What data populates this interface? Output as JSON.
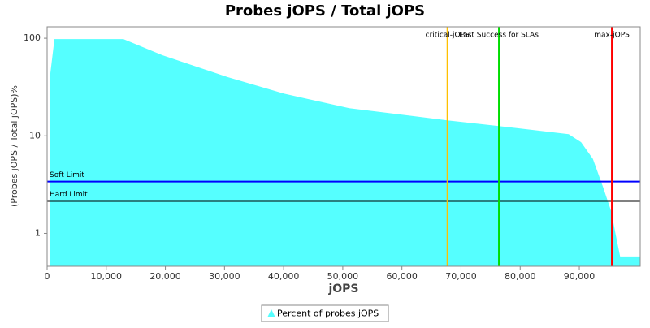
{
  "chart_data": {
    "type": "area",
    "title": "Probes jOPS / Total jOPS",
    "x_label": "jOPS",
    "y_label": "(Probes jOPS / Total jOPS)%",
    "log_y": true,
    "xlim": [
      0,
      100300
    ],
    "ylim": [
      0.46,
      131
    ],
    "xticks": [
      {
        "value": 0,
        "label": "0"
      },
      {
        "value": 10000,
        "label": "10,000"
      },
      {
        "value": 20000,
        "label": "20,000"
      },
      {
        "value": 30000,
        "label": "30,000"
      },
      {
        "value": 40000,
        "label": "40,000"
      },
      {
        "value": 50000,
        "label": "50,000"
      },
      {
        "value": 60000,
        "label": "60,000"
      },
      {
        "value": 70000,
        "label": "70,000"
      },
      {
        "value": 80000,
        "label": "80,000"
      },
      {
        "value": 90000,
        "label": "90,000"
      }
    ],
    "yticks": [
      1,
      10,
      100
    ],
    "x": [
      550,
      1240,
      12900,
      19500,
      30500,
      40100,
      51100,
      67700,
      76400,
      88200,
      90300,
      92300,
      94000,
      95400,
      96200,
      96900,
      100300
    ],
    "series": [
      {
        "name": "Percent of probes jOPS",
        "color": "#55ffff",
        "values": [
          44,
          98,
          98,
          67,
          40,
          27,
          19.2,
          14.4,
          12.6,
          10.4,
          8.6,
          5.8,
          3.0,
          1.68,
          0.94,
          0.58,
          0.58
        ]
      }
    ],
    "hlines": [
      {
        "label": "Soft Limit",
        "value": 3.4,
        "color": "#0000ff"
      },
      {
        "label": "Hard Limit",
        "value": 2.15,
        "color": "#000000"
      }
    ],
    "vlines": [
      {
        "label": "critical-jOPS",
        "value": 67700,
        "color": "#ffc000"
      },
      {
        "label": "Last Success for SLAs",
        "value": 76400,
        "color": "#00dd00"
      },
      {
        "label": "max-jOPS",
        "value": 95500,
        "color": "#ff0000"
      }
    ],
    "legend": "bottom"
  }
}
